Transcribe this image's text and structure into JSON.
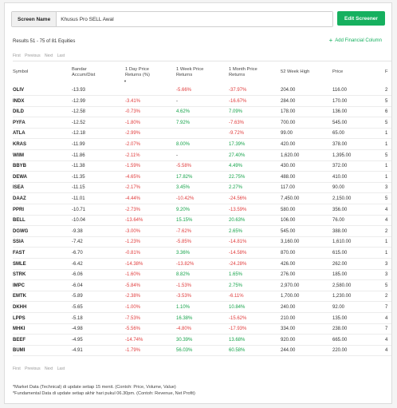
{
  "screen": {
    "label": "Screen Name",
    "value": "Khusus Pro SELL Awal",
    "edit_button": "Edit Screener"
  },
  "results_text": "Results 51 - 75 of 81 Equities",
  "add_financial": "Add Financial Column",
  "add_icon_glyph": "+",
  "pager": {
    "first": "First",
    "previous": "Previous",
    "next": "Next",
    "last": "Last"
  },
  "columns": {
    "symbol": "Symbol",
    "bandar": [
      "Bandar",
      "Accum/Dist"
    ],
    "day": [
      "1 Day Price",
      "Returns (%)"
    ],
    "week": [
      "1 Week Price",
      "Returns"
    ],
    "month": [
      "1 Month Price",
      "Returns"
    ],
    "high52": "52 Week High",
    "price": "Price",
    "extra": "F"
  },
  "sort_indicator": "▼",
  "rows": [
    {
      "symbol": "OLIV",
      "bandar": "-13.93",
      "day": "",
      "week": "-5.66%",
      "month": "-37.97%",
      "high": "204.00",
      "price": "116.00",
      "extra": "2"
    },
    {
      "symbol": "INDX",
      "bandar": "-12.99",
      "day": "-3.41%",
      "week": "-",
      "month": "-16.67%",
      "high": "284.00",
      "price": "170.00",
      "extra": "5"
    },
    {
      "symbol": "DILD",
      "bandar": "-12.58",
      "day": "-0.73%",
      "week": "4.62%",
      "month": "7.09%",
      "high": "178.00",
      "price": "136.00",
      "extra": "6"
    },
    {
      "symbol": "PYFA",
      "bandar": "-12.52",
      "day": "-1.80%",
      "week": "7.92%",
      "month": "-7.63%",
      "high": "700.00",
      "price": "545.00",
      "extra": "5"
    },
    {
      "symbol": "ATLA",
      "bandar": "-12.18",
      "day": "-2.99%",
      "week": "",
      "month": "-9.72%",
      "high": "99.00",
      "price": "65.00",
      "extra": "1"
    },
    {
      "symbol": "KRAS",
      "bandar": "-11.99",
      "day": "-2.07%",
      "week": "8.00%",
      "month": "17.39%",
      "high": "420.00",
      "price": "378.00",
      "extra": "1"
    },
    {
      "symbol": "WIIM",
      "bandar": "-11.86",
      "day": "-2.11%",
      "week": "-",
      "month": "27.40%",
      "high": "1,620.00",
      "price": "1,395.00",
      "extra": "5"
    },
    {
      "symbol": "BBYB",
      "bandar": "-11.38",
      "day": "-1.59%",
      "week": "-5.58%",
      "month": "4.49%",
      "high": "430.00",
      "price": "372.00",
      "extra": "1"
    },
    {
      "symbol": "DEWA",
      "bandar": "-11.35",
      "day": "-4.65%",
      "week": "17.82%",
      "month": "22.75%",
      "high": "488.00",
      "price": "410.00",
      "extra": "1"
    },
    {
      "symbol": "ISEA",
      "bandar": "-11.15",
      "day": "-2.17%",
      "week": "3.45%",
      "month": "2.27%",
      "high": "117.00",
      "price": "90.00",
      "extra": "3"
    },
    {
      "symbol": "DAAZ",
      "bandar": "-11.01",
      "day": "-4.44%",
      "week": "-10.42%",
      "month": "-24.56%",
      "high": "7,450.00",
      "price": "2,150.00",
      "extra": "5"
    },
    {
      "symbol": "PPRI",
      "bandar": "-10.71",
      "day": "-2.73%",
      "week": "9.20%",
      "month": "-13.59%",
      "high": "580.00",
      "price": "356.00",
      "extra": "4"
    },
    {
      "symbol": "BELL",
      "bandar": "-10.04",
      "day": "-13.64%",
      "week": "15.15%",
      "month": "20.63%",
      "high": "106.00",
      "price": "76.00",
      "extra": "4"
    },
    {
      "symbol": "DGWG",
      "bandar": "-9.38",
      "day": "-3.00%",
      "week": "-7.62%",
      "month": "2.65%",
      "high": "545.00",
      "price": "388.00",
      "extra": "2"
    },
    {
      "symbol": "SSIA",
      "bandar": "-7.42",
      "day": "-1.23%",
      "week": "-5.85%",
      "month": "-14.81%",
      "high": "3,160.00",
      "price": "1,610.00",
      "extra": "1"
    },
    {
      "symbol": "FAST",
      "bandar": "-6.70",
      "day": "-0.81%",
      "week": "3.36%",
      "month": "-14.58%",
      "high": "870.00",
      "price": "615.00",
      "extra": "1"
    },
    {
      "symbol": "SMLE",
      "bandar": "-6.42",
      "day": "-14.38%",
      "week": "-13.82%",
      "month": "-24.28%",
      "high": "426.00",
      "price": "262.00",
      "extra": "3"
    },
    {
      "symbol": "STRK",
      "bandar": "-6.06",
      "day": "-1.60%",
      "week": "8.82%",
      "month": "1.65%",
      "high": "276.00",
      "price": "185.00",
      "extra": "3"
    },
    {
      "symbol": "IMPC",
      "bandar": "-6.04",
      "day": "-5.84%",
      "week": "-1.53%",
      "month": "2.75%",
      "high": "2,970.00",
      "price": "2,580.00",
      "extra": "5"
    },
    {
      "symbol": "EMTK",
      "bandar": "-5.89",
      "day": "-2.38%",
      "week": "-3.53%",
      "month": "-6.11%",
      "high": "1,700.00",
      "price": "1,230.00",
      "extra": "2"
    },
    {
      "symbol": "DKHH",
      "bandar": "-5.65",
      "day": "-1.00%",
      "week": "1.10%",
      "month": "10.84%",
      "high": "240.00",
      "price": "92.00",
      "extra": "7"
    },
    {
      "symbol": "LPPS",
      "bandar": "-5.18",
      "day": "-7.53%",
      "week": "16.38%",
      "month": "-15.62%",
      "high": "210.00",
      "price": "135.00",
      "extra": "4"
    },
    {
      "symbol": "MHKI",
      "bandar": "-4.98",
      "day": "-5.56%",
      "week": "-4.80%",
      "month": "-17.93%",
      "high": "334.00",
      "price": "238.00",
      "extra": "7"
    },
    {
      "symbol": "BEEF",
      "bandar": "-4.95",
      "day": "-14.74%",
      "week": "30.39%",
      "month": "13.68%",
      "high": "920.00",
      "price": "665.00",
      "extra": "4"
    },
    {
      "symbol": "BUMI",
      "bandar": "-4.91",
      "day": "-1.79%",
      "week": "56.03%",
      "month": "60.58%",
      "high": "244.00",
      "price": "220.00",
      "extra": "4"
    }
  ],
  "notes": [
    "*Market Data (Technical) di update setiap 15 menit. (Contoh: Price, Volume, Value)",
    "*Fundamental Data di update setiap akhir hari pukul 06.30pm. (Contoh: Revenue, Net Profit)"
  ],
  "colors": {
    "accent": "#16b05f",
    "negative": "#e03c3c",
    "positive": "#16a34a"
  }
}
